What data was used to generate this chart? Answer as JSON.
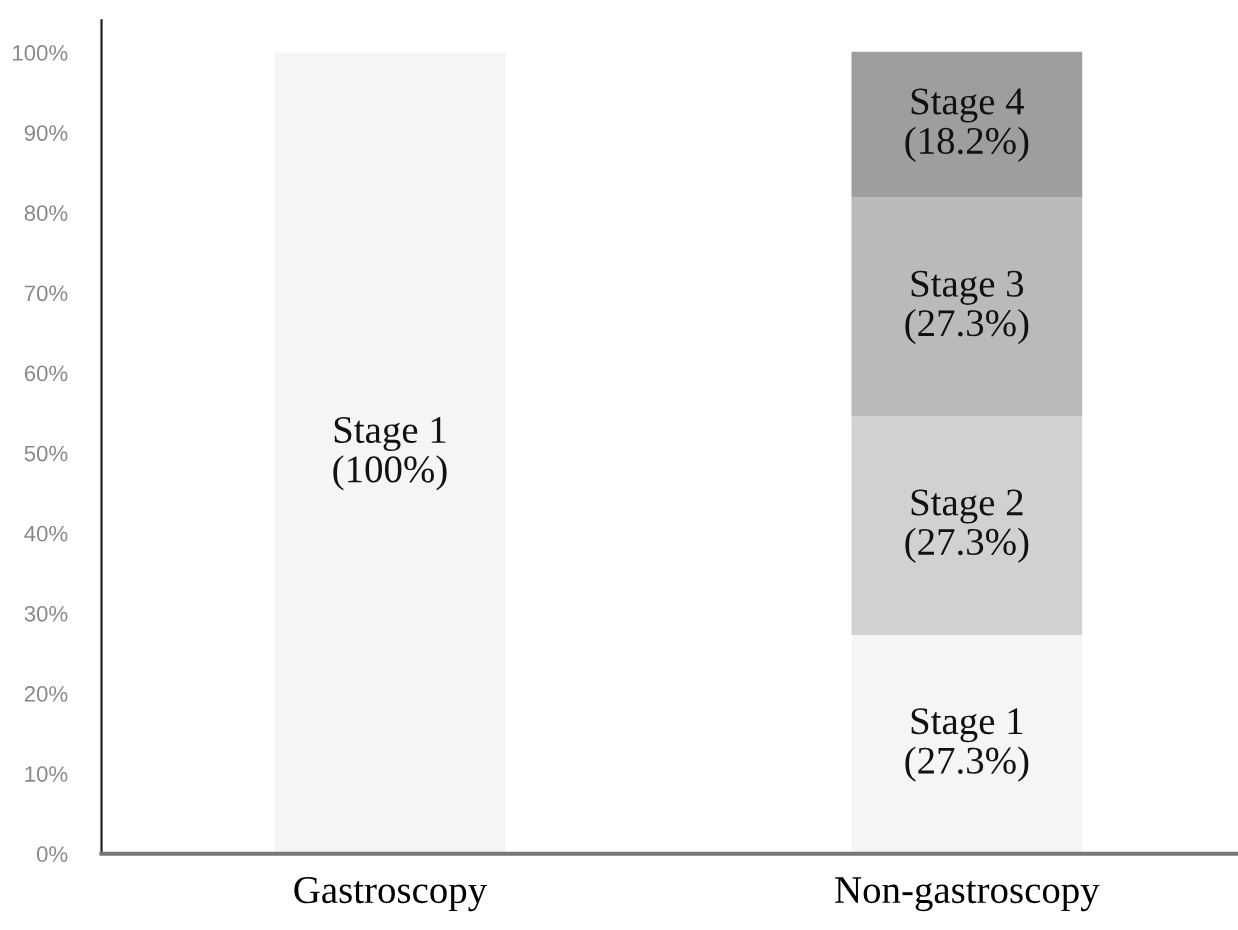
{
  "chart_data": {
    "type": "bar",
    "stacked": true,
    "categories": [
      "Gastroscopy",
      "Non-gastroscopy"
    ],
    "series": [
      {
        "name": "Stage 1",
        "color": "#f4f5f4",
        "values": [
          100,
          27.3
        ],
        "value_labels": [
          "(100%)",
          "(27.3%)"
        ]
      },
      {
        "name": "Stage 2",
        "color": "#d0d1d1",
        "values": [
          null,
          27.3
        ],
        "value_labels": [
          null,
          "(27.3%)"
        ]
      },
      {
        "name": "Stage 3",
        "color": "#bababa",
        "values": [
          null,
          27.3
        ],
        "value_labels": [
          null,
          "(27.3%)"
        ]
      },
      {
        "name": "Stage 4",
        "color": "#9e9e9e",
        "values": [
          null,
          18.2
        ],
        "value_labels": [
          null,
          "(18.2%)"
        ]
      }
    ],
    "ylim": [
      0,
      104
    ],
    "yticks": [
      {
        "value": 0,
        "label": "0%"
      },
      {
        "value": 10,
        "label": "10%"
      },
      {
        "value": 20,
        "label": "20%"
      },
      {
        "value": 30,
        "label": "30%"
      },
      {
        "value": 40,
        "label": "40%"
      },
      {
        "value": 50,
        "label": "50%"
      },
      {
        "value": 60,
        "label": "60%"
      },
      {
        "value": 70,
        "label": "70%"
      },
      {
        "value": 80,
        "label": "80%"
      },
      {
        "value": 90,
        "label": "90%"
      },
      {
        "value": 100,
        "label": "100%"
      }
    ],
    "grid": false,
    "legend": false
  }
}
